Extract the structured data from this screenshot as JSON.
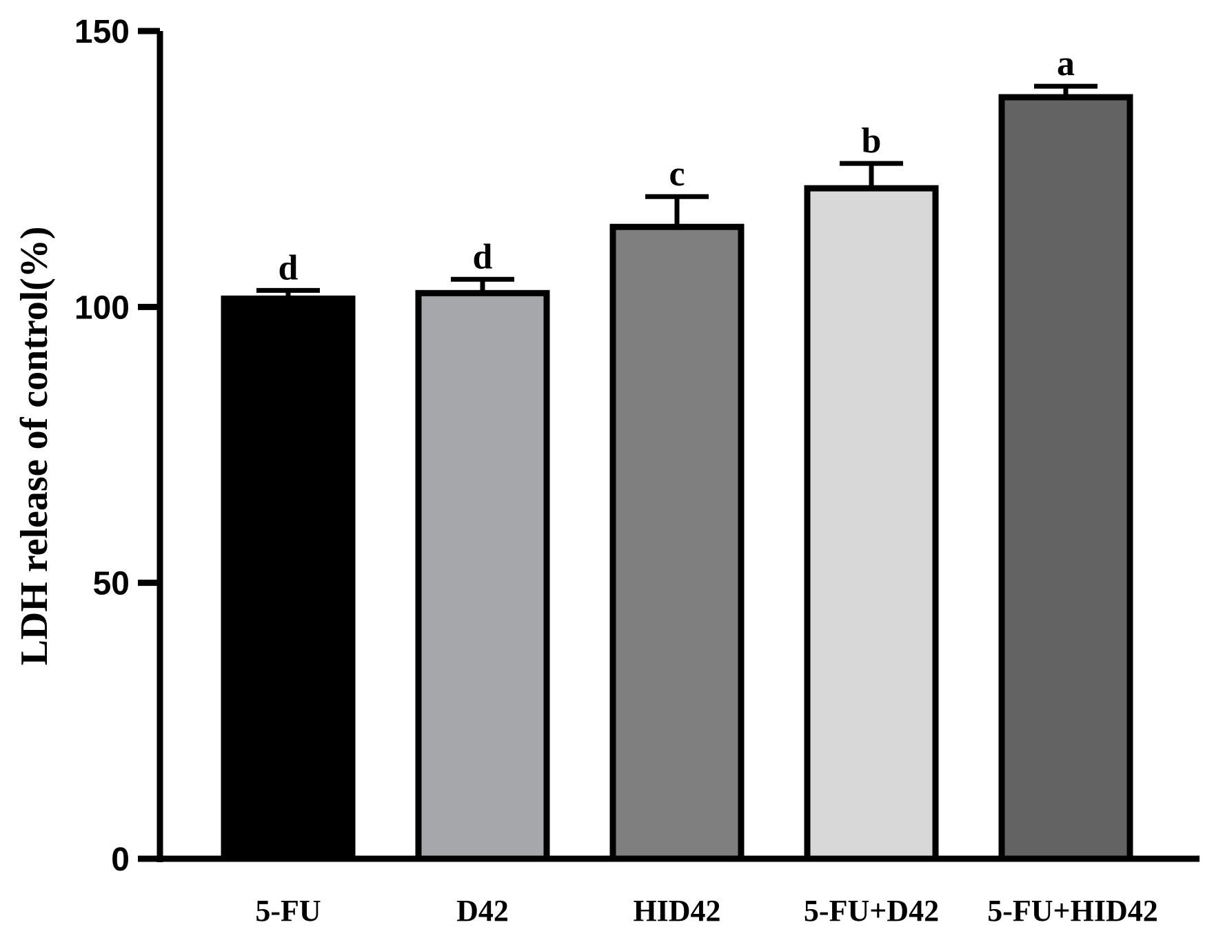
{
  "chart_data": {
    "type": "bar",
    "title": "",
    "xlabel": "",
    "ylabel": "LDH release of control(%)",
    "ylim": [
      0,
      150
    ],
    "yticks": [
      0,
      50,
      100,
      150
    ],
    "grid": false,
    "categories": [
      "5-FU",
      "D42",
      "HID42",
      "5-FU+D42",
      "5-FU+HID42"
    ],
    "values": [
      101.5,
      102.5,
      114.5,
      121.5,
      138
    ],
    "errors": [
      1.5,
      2.5,
      5.5,
      4.5,
      2.0
    ],
    "significance": [
      "d",
      "d",
      "c",
      "b",
      "a"
    ],
    "colors": [
      "#000000",
      "#a6a7aa",
      "#7f7f7f",
      "#d8d8d8",
      "#636363"
    ]
  }
}
